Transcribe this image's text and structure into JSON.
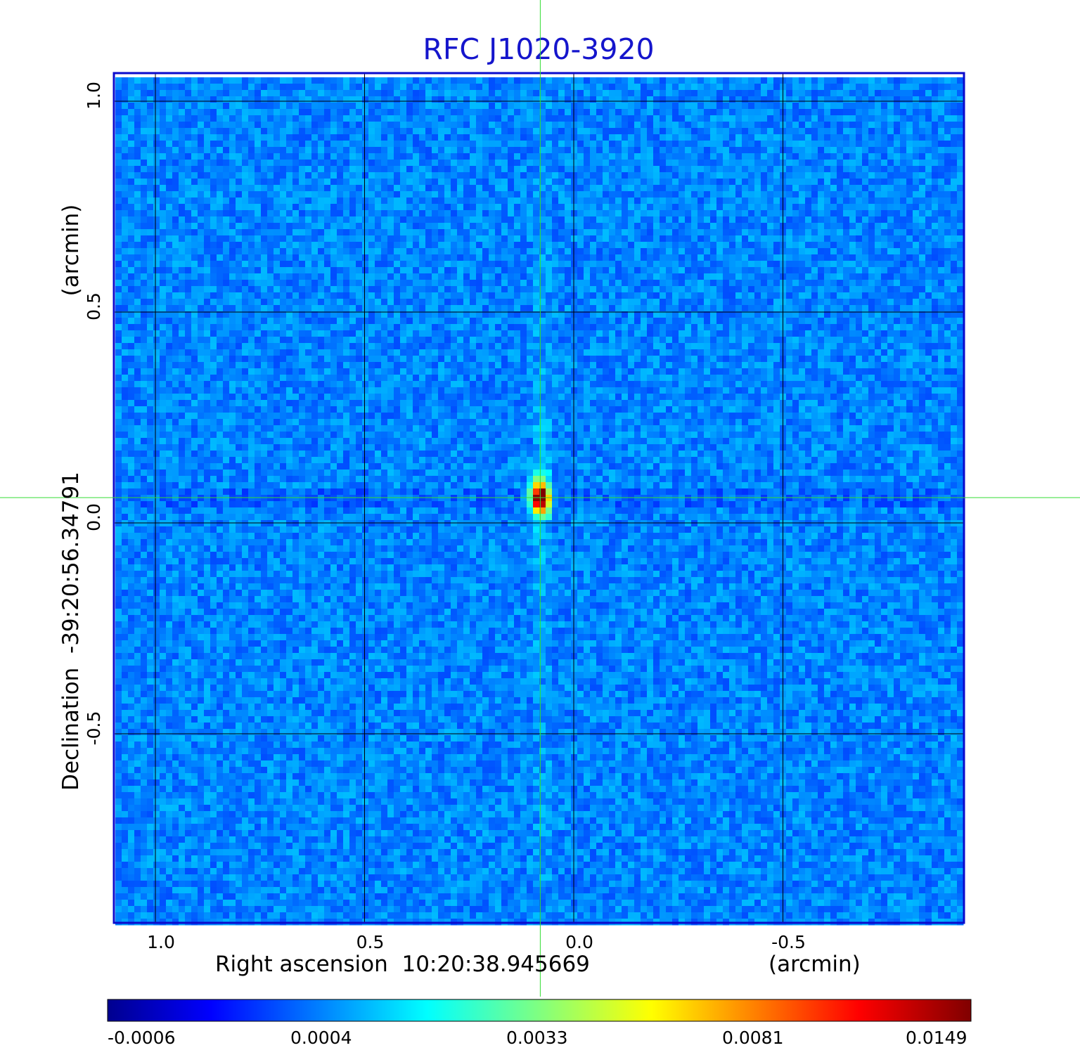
{
  "image": {
    "title": "RFC J1020-3920",
    "description_colormap": "jet",
    "x_axis": {
      "label_left": "Right ascension  10:20:38.945669",
      "label_right": "(arcmin)",
      "ticks": [
        "1.0",
        "0.5",
        "0.0",
        "-0.5"
      ],
      "range": [
        1.1,
        -0.9
      ],
      "reversed": true
    },
    "y_axis": {
      "label_main": "Declination  -39:20:56.34791",
      "label_unit": "(arcmin)",
      "ticks": [
        "1.0",
        "0.5",
        "0.0",
        "-0.5"
      ],
      "range": [
        -0.95,
        1.07
      ]
    },
    "grid": true,
    "crosshair": {
      "x_arcmin": 0.08,
      "y_arcmin": 0.06,
      "color": "#33dd33"
    },
    "peak": {
      "x_arcmin": 0.08,
      "y_arcmin": 0.06
    },
    "colorbar": {
      "ticks": [
        "-0.0006",
        "0.0004",
        "0.0033",
        "0.0081",
        "0.0149"
      ]
    },
    "colors": {
      "title": "#1515cc",
      "frame": "#0a0acc",
      "background_noise": "#1a6cf0",
      "grid": "#000000"
    }
  }
}
